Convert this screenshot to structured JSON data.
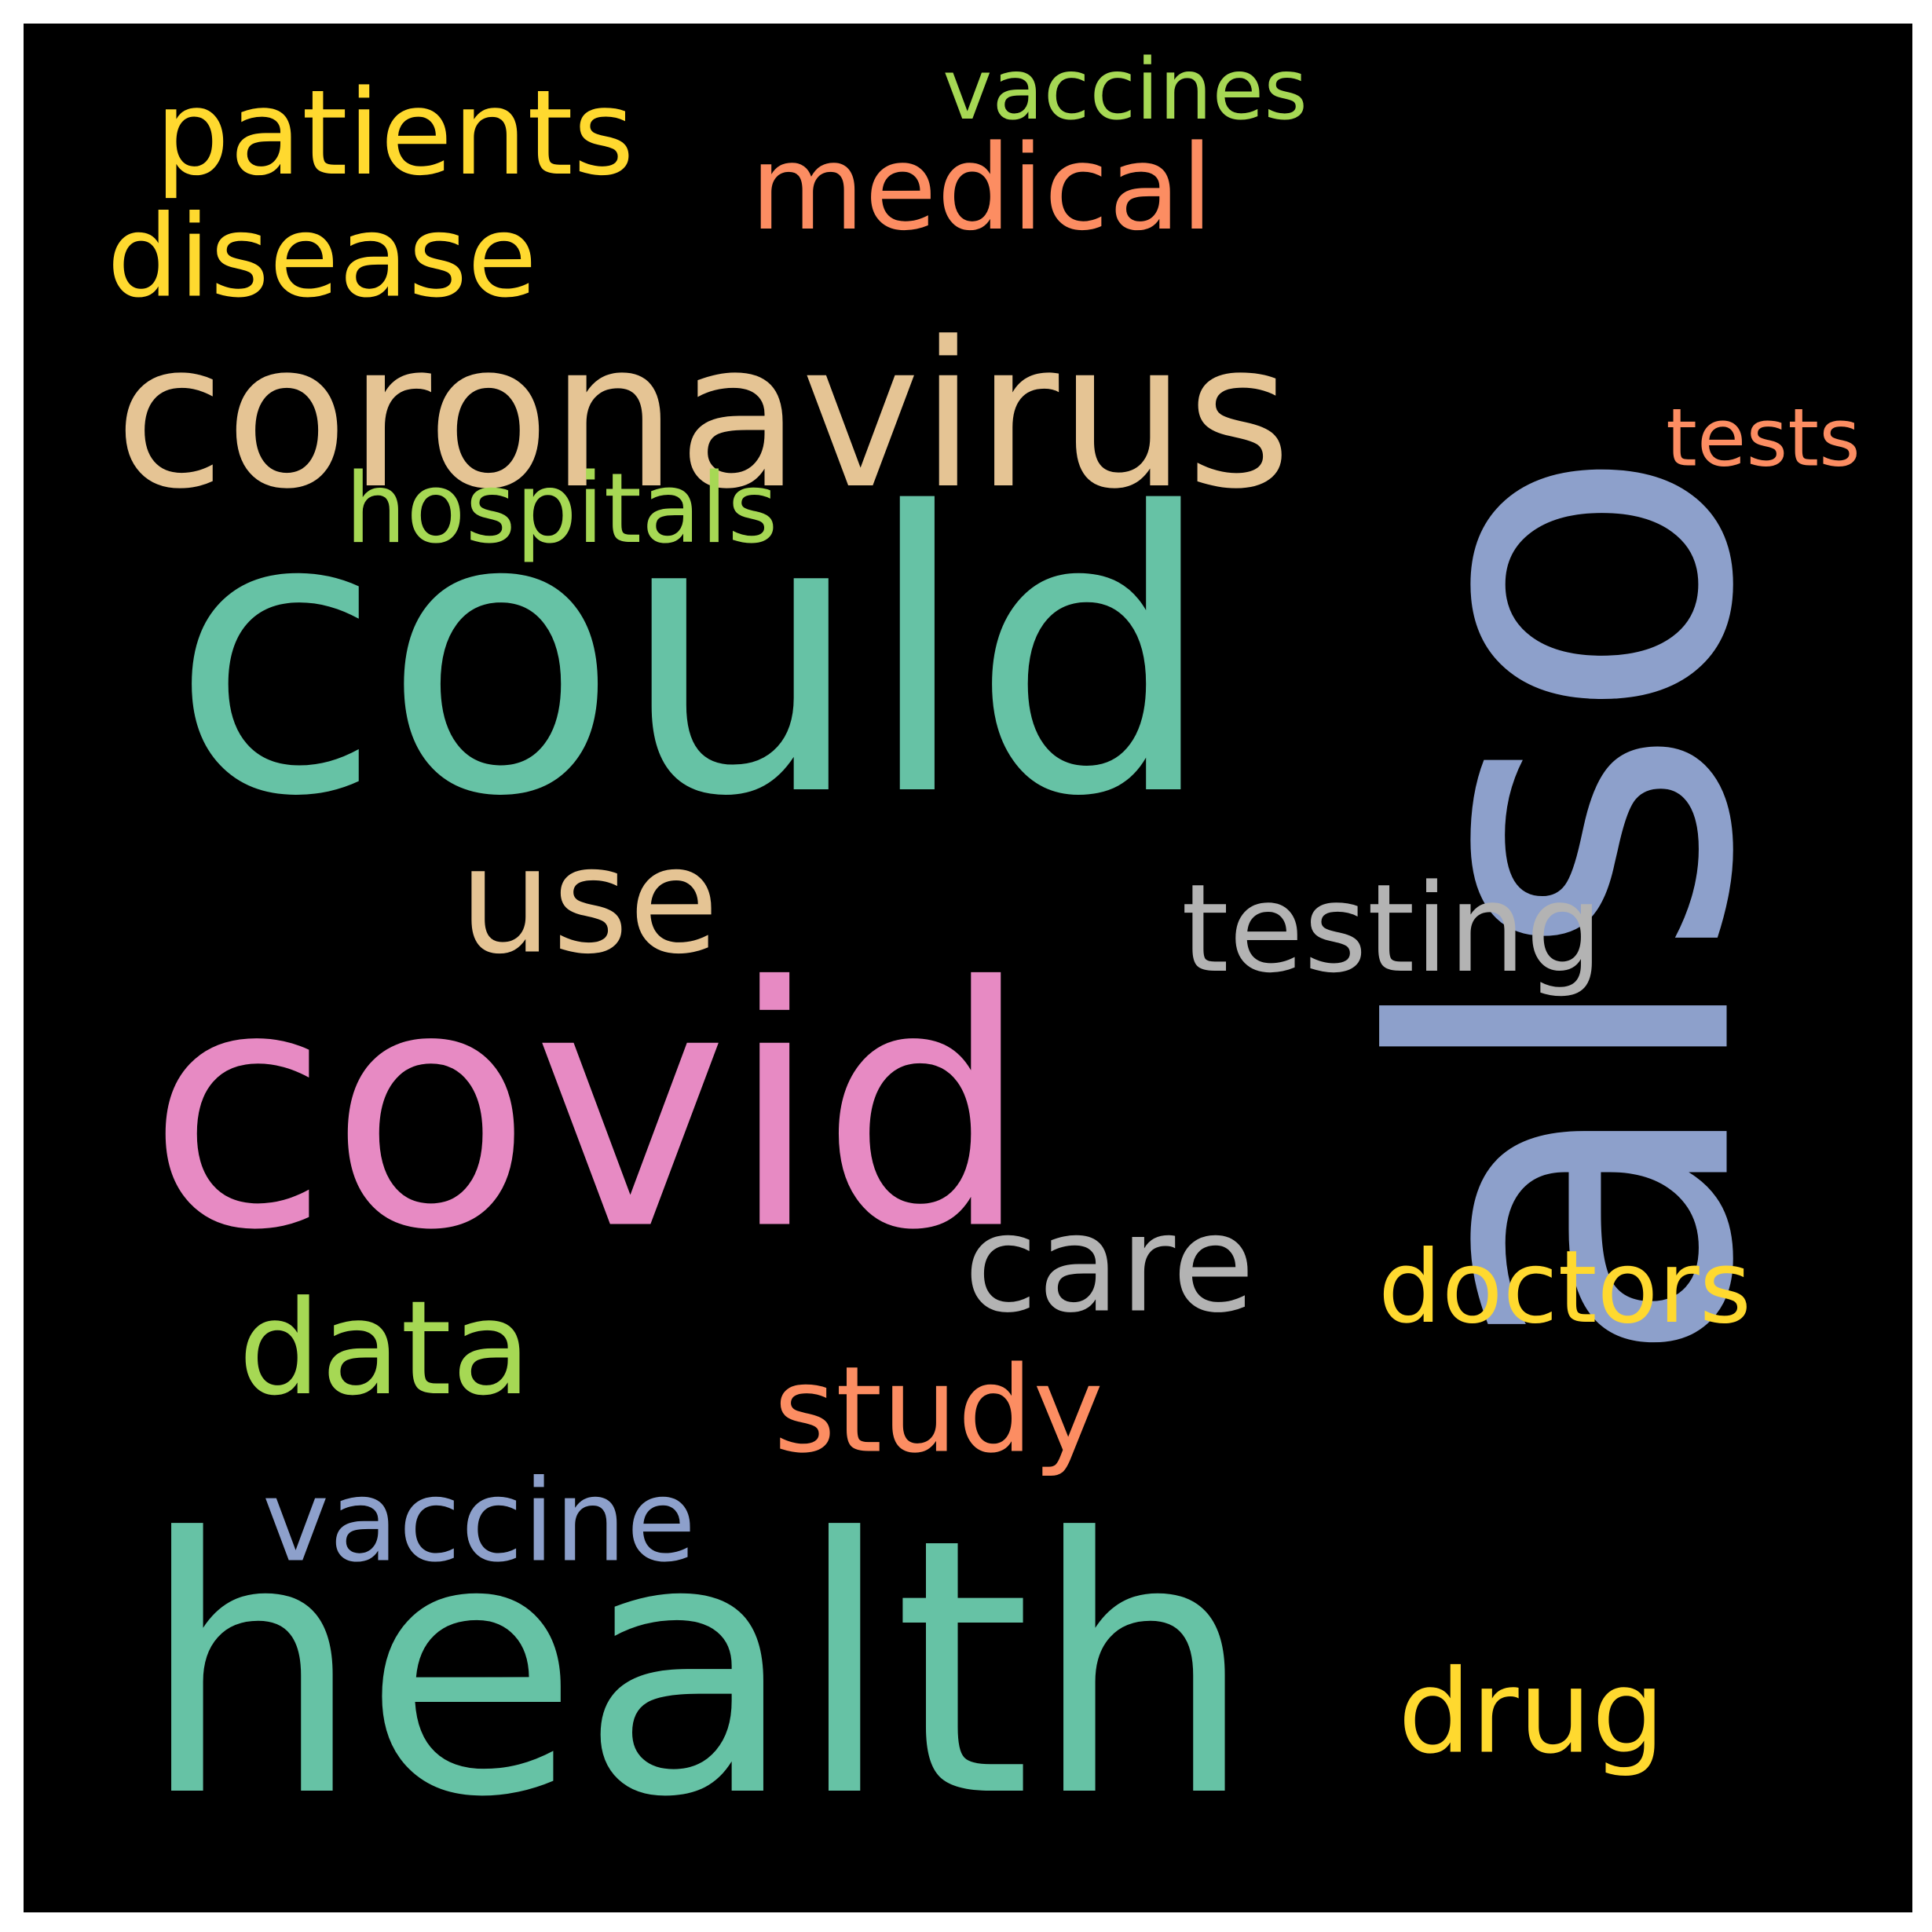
{
  "background_color": "#000000",
  "frame_color": "#ffffff",
  "words": [
    {
      "text": "also",
      "color": "#8da0cb",
      "orientation": "vertical"
    },
    {
      "text": "could",
      "color": "#66c2a5",
      "orientation": "horizontal"
    },
    {
      "text": "health",
      "color": "#66c2a5",
      "orientation": "horizontal"
    },
    {
      "text": "covid",
      "color": "#e78ac3",
      "orientation": "horizontal"
    },
    {
      "text": "coronavirus",
      "color": "#e5c494",
      "orientation": "horizontal"
    },
    {
      "text": "patients",
      "color": "#ffd92f",
      "orientation": "horizontal"
    },
    {
      "text": "medical",
      "color": "#fc8d62",
      "orientation": "horizontal"
    },
    {
      "text": "disease",
      "color": "#ffd92f",
      "orientation": "horizontal"
    },
    {
      "text": "vaccines",
      "color": "#a6d854",
      "orientation": "horizontal"
    },
    {
      "text": "hospitals",
      "color": "#a6d854",
      "orientation": "horizontal"
    },
    {
      "text": "tests",
      "color": "#fc8d62",
      "orientation": "horizontal"
    },
    {
      "text": "use",
      "color": "#e5c494",
      "orientation": "horizontal"
    },
    {
      "text": "testing",
      "color": "#b3b3b3",
      "orientation": "horizontal"
    },
    {
      "text": "care",
      "color": "#b3b3b3",
      "orientation": "horizontal"
    },
    {
      "text": "data",
      "color": "#a6d854",
      "orientation": "horizontal"
    },
    {
      "text": "doctors",
      "color": "#ffd92f",
      "orientation": "horizontal"
    },
    {
      "text": "study",
      "color": "#fc8d62",
      "orientation": "horizontal"
    },
    {
      "text": "vaccine",
      "color": "#8da0cb",
      "orientation": "horizontal"
    },
    {
      "text": "drug",
      "color": "#ffd92f",
      "orientation": "horizontal"
    }
  ]
}
